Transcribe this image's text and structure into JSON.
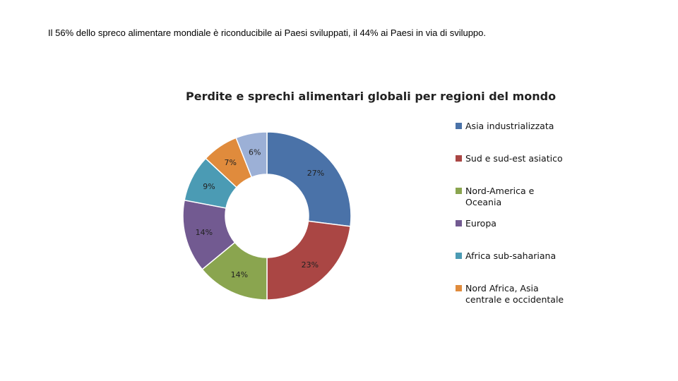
{
  "caption": "Il 56% dello spreco alimentare mondiale è riconducibile ai Paesi sviluppati, il 44% ai Paesi in via di sviluppo.",
  "chart_data": {
    "type": "pie",
    "variant": "donut",
    "title": "Perdite e sprechi alimentari globali per regioni del mondo",
    "legend_position": "right",
    "slices": [
      {
        "name": "Asia industrializzata",
        "value": 27,
        "label": "27%",
        "color": "#4a72a8"
      },
      {
        "name": "Sud e sud-est asiatico",
        "value": 23,
        "label": "23%",
        "color": "#aa4644"
      },
      {
        "name": "Nord-America e Oceania",
        "value": 14,
        "label": "14%",
        "color": "#8aa54f"
      },
      {
        "name": "Europa",
        "value": 14,
        "label": "14%",
        "color": "#725a91"
      },
      {
        "name": "Africa sub-sahariana",
        "value": 9,
        "label": "9%",
        "color": "#4b9bb4"
      },
      {
        "name": "Nord Africa, Asia centrale e occidentale",
        "value": 7,
        "label": "7%",
        "color": "#e08b3c"
      },
      {
        "name": "",
        "value": 6,
        "label": "6%",
        "color": "#9cb0d6"
      }
    ]
  }
}
